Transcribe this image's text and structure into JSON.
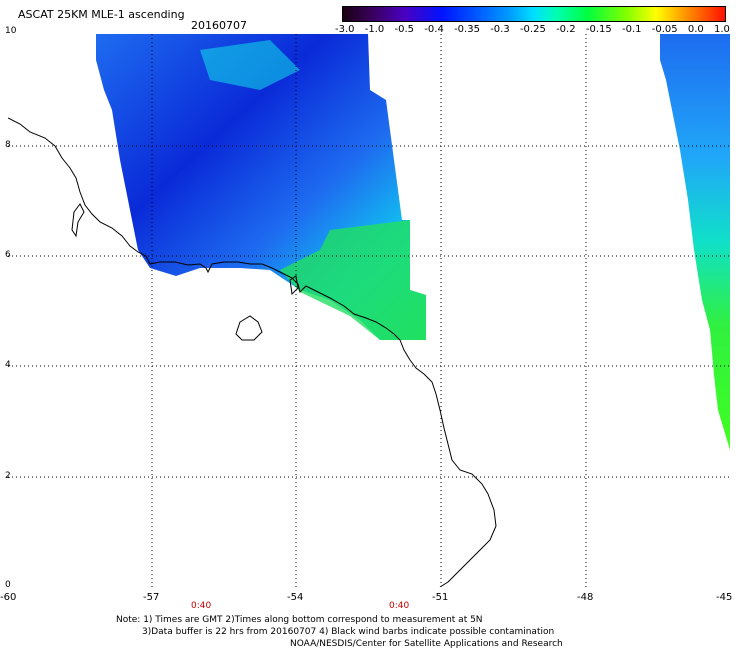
{
  "header": {
    "title": "ASCAT 25KM MLE-1 ascending",
    "date": "20160707"
  },
  "colorbar": {
    "ticks": [
      "-3.0",
      "-1.0",
      "-0.5",
      "-0.4",
      "-0.35",
      "-0.3",
      "-0.25",
      "-0.2",
      "-0.15",
      "-0.1",
      "-0.05",
      "0.0",
      "1.0"
    ]
  },
  "axes": {
    "y_ticks": [
      "10",
      "8",
      "6",
      "4",
      "2",
      "0"
    ],
    "x_ticks": [
      "-60",
      "-57",
      "-54",
      "-51",
      "-48",
      "-45"
    ],
    "times": [
      "0:40",
      "0:40"
    ]
  },
  "notes": {
    "line1": "Note: 1) Times are GMT 2)Times along bottom correspond to measurement at 5N",
    "line2": "3)Data buffer is 22 hrs from 20160707 4) Black wind barbs indicate possible contamination",
    "line3": "NOAA/NESDIS/Center for Satellite Applications and Research"
  },
  "colors": {
    "deep_blue": "#0a2ad8",
    "blue": "#1e6cf0",
    "sky": "#20a8f8",
    "cyan": "#10e0e8",
    "green": "#20e060",
    "lime": "#40ff20"
  }
}
